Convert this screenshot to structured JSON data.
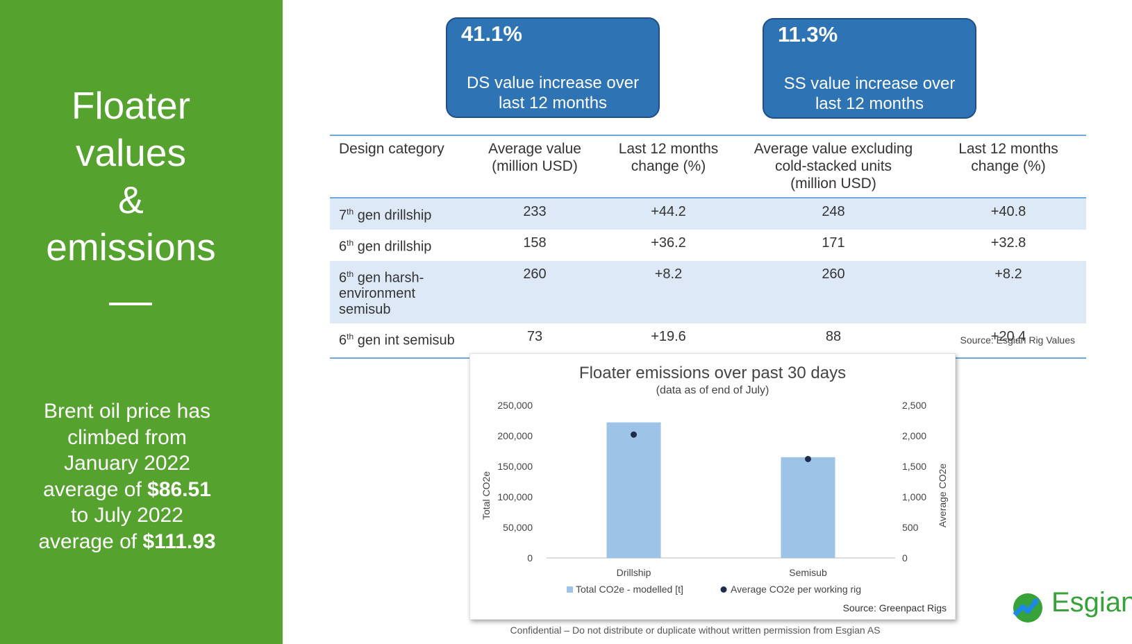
{
  "sidebar": {
    "title_lines": [
      "Floater",
      "values",
      "&",
      "emissions"
    ],
    "rule": "—",
    "text_line1": "Brent oil price has",
    "text_line2": "climbed from",
    "text_line3": "January 2022",
    "text_line4_prefix": "average of ",
    "text_line4_value": "$86.51",
    "text_line5": "to July 2022",
    "text_line6_prefix": "average of ",
    "text_line6_value": "$111.93"
  },
  "stats": [
    {
      "pct": "41.1%",
      "desc_line1": "DS value increase over",
      "desc_line2": "last 12 months"
    },
    {
      "pct": "11.3%",
      "desc_line1": "SS value increase over",
      "desc_line2": "last 12 months"
    }
  ],
  "table": {
    "headers": [
      [
        "Design category"
      ],
      [
        "Average value",
        "(million USD)"
      ],
      [
        "Last 12 months",
        "change (%)"
      ],
      [
        "Average value excluding",
        "cold-stacked units",
        "(million USD)"
      ],
      [
        "Last 12 months",
        "change (%)"
      ]
    ],
    "rows": [
      {
        "ord": "7",
        "sup": "th",
        "name_line1": " gen drillship",
        "name_line2": "",
        "avg": "233",
        "chg": "+44.2",
        "avg_ex": "248",
        "chg_ex": "+40.8"
      },
      {
        "ord": "6",
        "sup": "th",
        "name_line1": " gen drillship",
        "name_line2": "",
        "avg": "158",
        "chg": "+36.2",
        "avg_ex": "171",
        "chg_ex": "+32.8"
      },
      {
        "ord": "6",
        "sup": "th",
        "name_line1": " gen harsh-",
        "name_line2": "environment semisub",
        "avg": "260",
        "chg": "+8.2",
        "avg_ex": "260",
        "chg_ex": "+8.2"
      },
      {
        "ord": "6",
        "sup": "th",
        "name_line1": " gen int semisub",
        "name_line2": "",
        "avg": "73",
        "chg": "+19.6",
        "avg_ex": "88",
        "chg_ex": "+20.4"
      }
    ],
    "source": "Source: Esgian Rig Values"
  },
  "chart_data": {
    "type": "bar",
    "title": "Floater emissions over past 30 days",
    "subtitle": "(data as of end of July)",
    "categories": [
      "Drillship",
      "Semisub"
    ],
    "series": [
      {
        "name": "Total CO2e - modelled [t]",
        "type": "bar",
        "axis": "left",
        "values": [
          222000,
          165000
        ],
        "color": "#9dc3e6"
      },
      {
        "name": "Average CO2e per working rig",
        "type": "scatter",
        "axis": "right",
        "values": [
          2020,
          1620
        ],
        "color": "#1f2d4d"
      }
    ],
    "ylabel": "Total CO2e",
    "y2label": "Average CO2e",
    "ylim": [
      0,
      250000
    ],
    "y2lim": [
      0,
      2500
    ],
    "yticks": [
      "0",
      "50,000",
      "100,000",
      "150,000",
      "200,000",
      "250,000"
    ],
    "y2ticks": [
      "0",
      "500",
      "1,000",
      "1,500",
      "2,000",
      "2,500"
    ],
    "legend_position": "bottom",
    "grid": false,
    "source": "Source: Greenpact Rigs"
  },
  "footer": "Confidential – Do not distribute or duplicate without written permission from Esgian AS",
  "logo": {
    "text": "Esgian",
    "icon": "esgian-logo-icon",
    "color": "#37a23a"
  }
}
